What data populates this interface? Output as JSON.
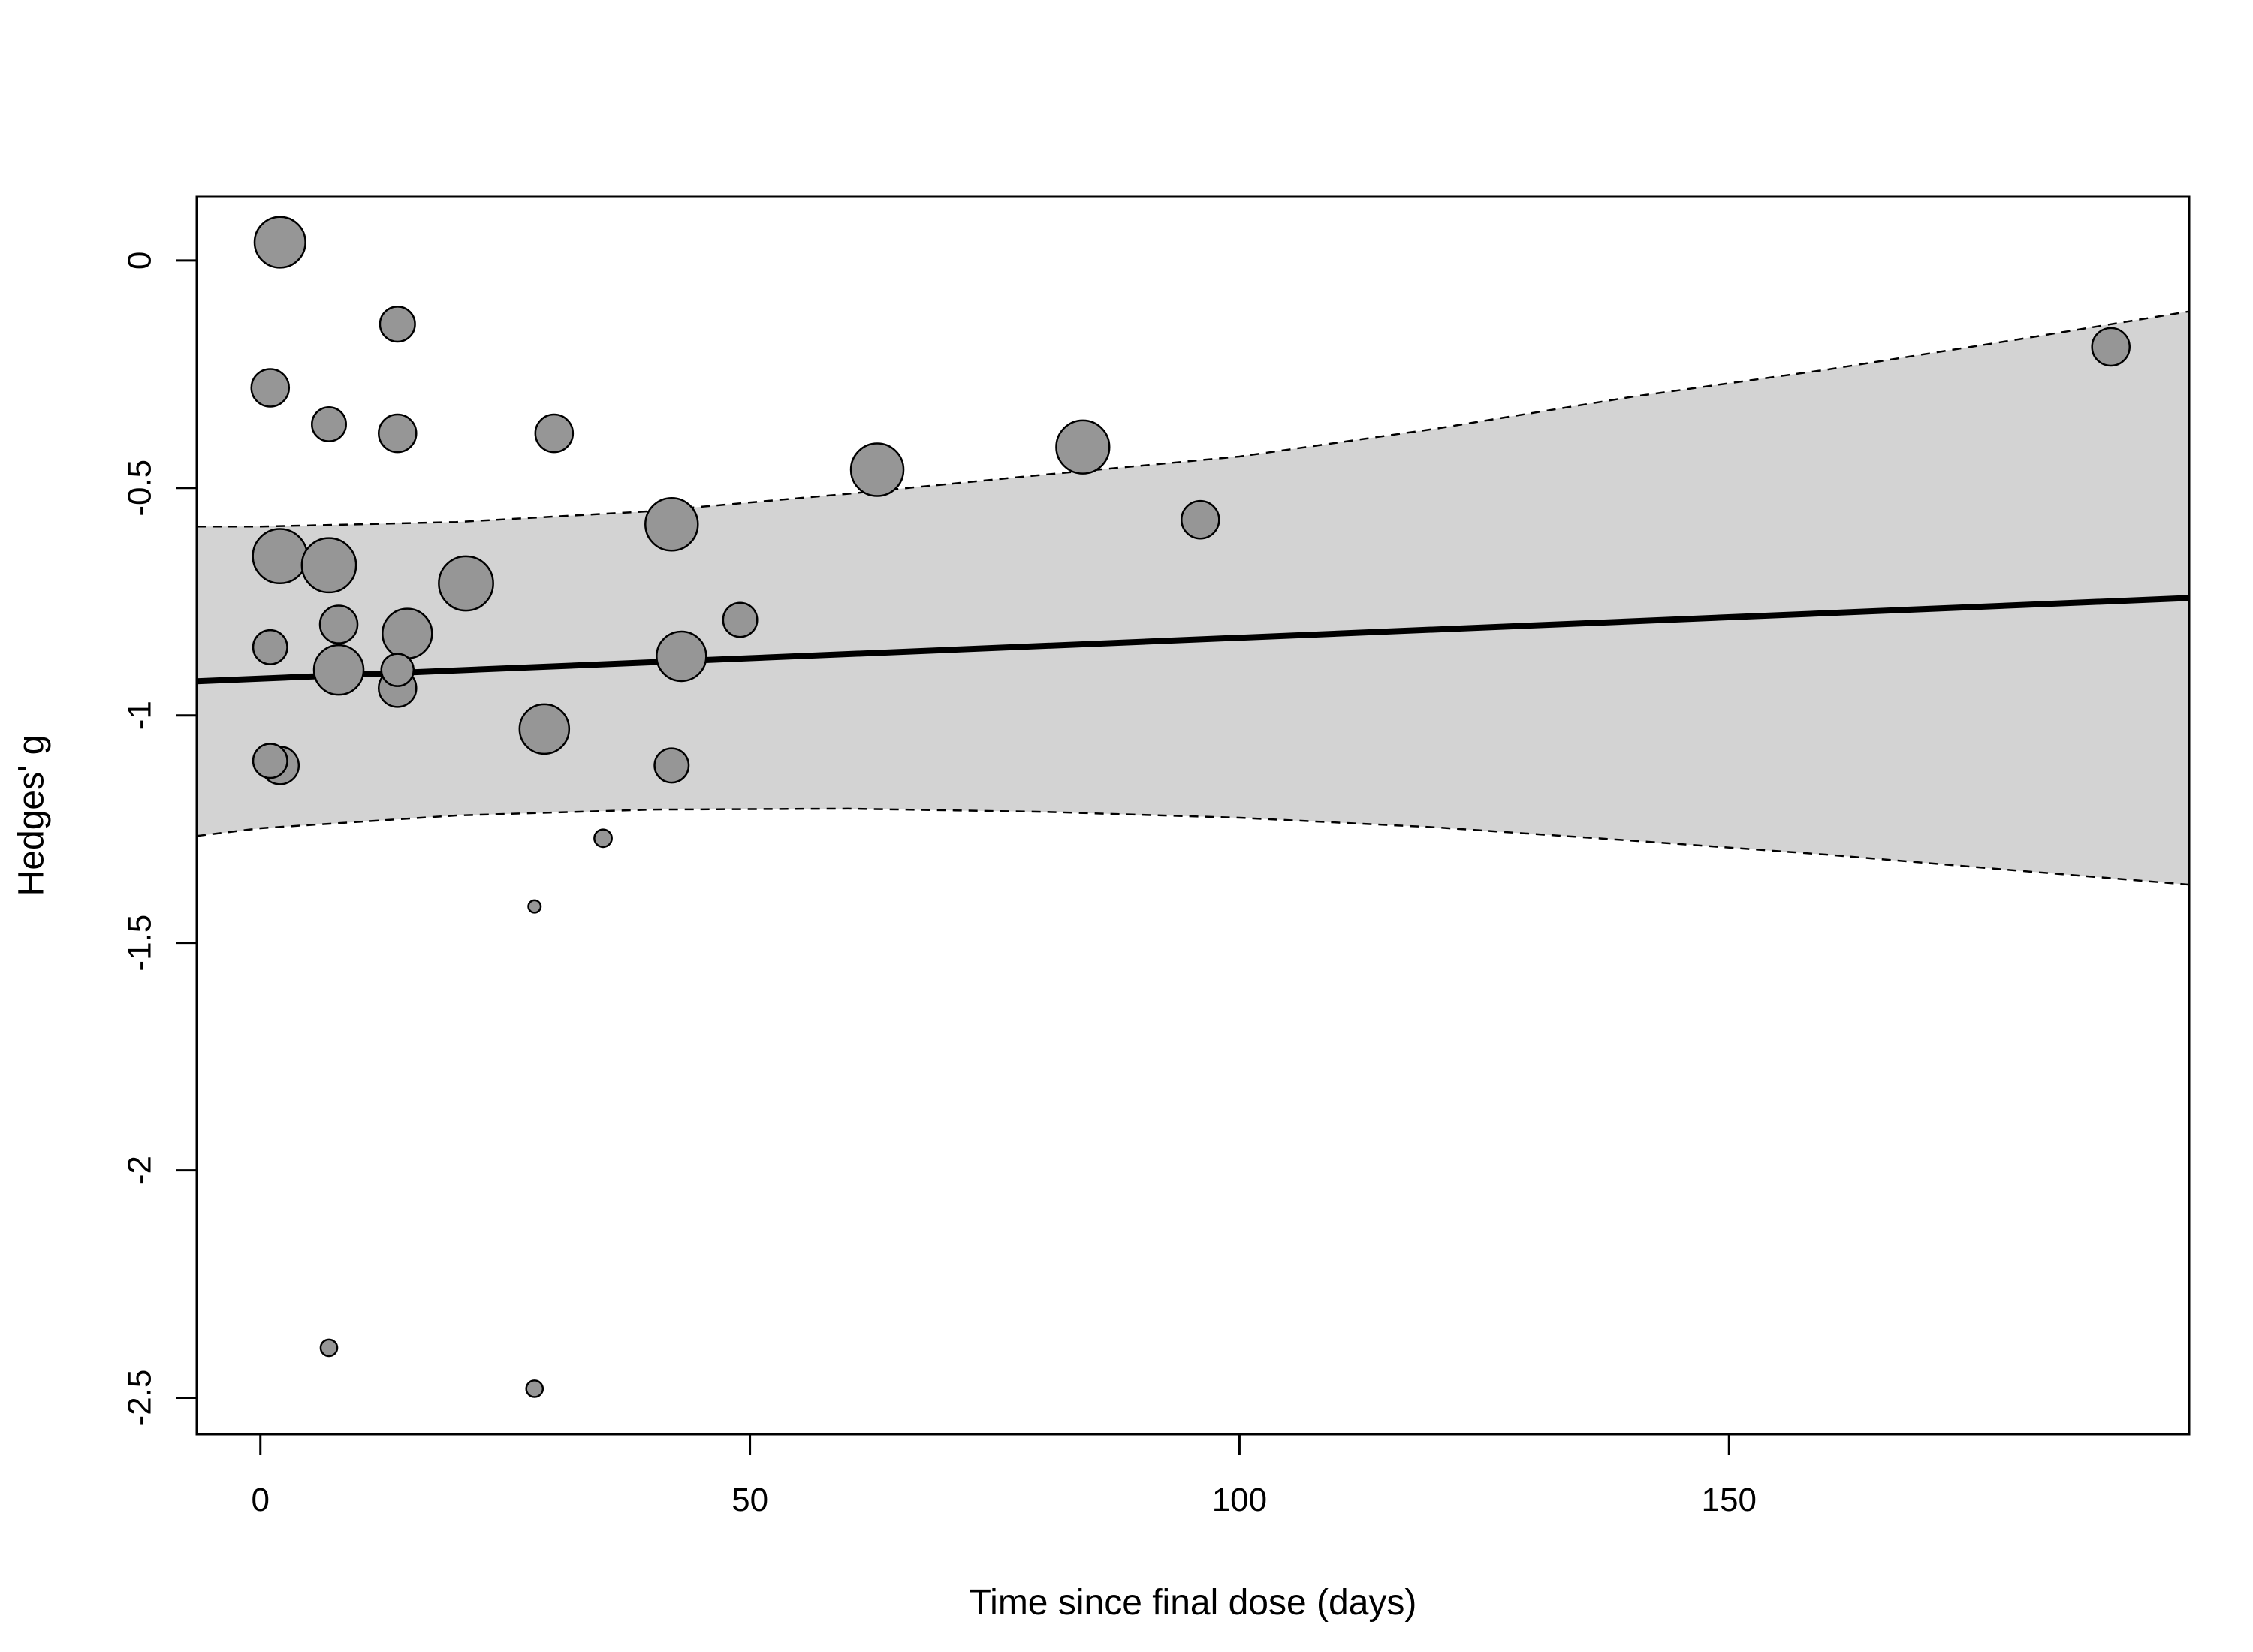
{
  "chart_data": {
    "type": "scatter",
    "title": "",
    "xlabel": "Time since final dose (days)",
    "ylabel": "Hedges' g",
    "xlim": [
      -6.5,
      197
    ],
    "ylim": [
      -2.58,
      0.14
    ],
    "x_ticks": [
      0,
      50,
      100,
      150
    ],
    "y_ticks": [
      0,
      -0.5,
      -1,
      -1.5,
      -2,
      -2.5
    ],
    "x_tick_labels": [
      "0",
      "50",
      "100",
      "150"
    ],
    "y_tick_labels": [
      "0",
      "-0.5",
      "-1",
      "-1.5",
      "-2",
      "-2.5"
    ],
    "grid": false,
    "legend": "none",
    "colors": {
      "points": "#969696",
      "point_outline": "#000000",
      "ci_band": "#d3d3d3",
      "regression_line": "#000000"
    },
    "regression": {
      "x": [
        -6.5,
        197
      ],
      "y": [
        -0.925,
        -0.742
      ]
    },
    "ci_upper": {
      "x": [
        -6.5,
        0,
        20,
        40,
        60,
        80,
        100,
        120,
        140,
        160,
        180,
        197
      ],
      "y": [
        -0.585,
        -0.585,
        -0.575,
        -0.551,
        -0.513,
        -0.471,
        -0.431,
        -0.37,
        -0.3,
        -0.24,
        -0.172,
        -0.112
      ]
    },
    "ci_lower": {
      "x": [
        -6.5,
        0,
        20,
        40,
        60,
        80,
        100,
        120,
        140,
        160,
        180,
        197
      ],
      "y": [
        -1.265,
        -1.248,
        -1.22,
        -1.207,
        -1.205,
        -1.212,
        -1.225,
        -1.246,
        -1.275,
        -1.306,
        -1.342,
        -1.372
      ]
    },
    "points": [
      {
        "x": 2,
        "y": 0.04,
        "w": 4.2
      },
      {
        "x": 14,
        "y": -0.14,
        "w": 2.0
      },
      {
        "x": 1,
        "y": -0.28,
        "w": 2.3
      },
      {
        "x": 7,
        "y": -0.36,
        "w": 1.9
      },
      {
        "x": 14,
        "y": -0.38,
        "w": 2.3
      },
      {
        "x": 30,
        "y": -0.38,
        "w": 2.3
      },
      {
        "x": 84,
        "y": -0.41,
        "w": 4.6
      },
      {
        "x": 63,
        "y": -0.46,
        "w": 4.5
      },
      {
        "x": 96,
        "y": -0.57,
        "w": 2.3
      },
      {
        "x": 42,
        "y": -0.58,
        "w": 4.5
      },
      {
        "x": 2,
        "y": -0.65,
        "w": 4.8
      },
      {
        "x": 7,
        "y": -0.67,
        "w": 4.8
      },
      {
        "x": 21,
        "y": -0.71,
        "w": 4.8
      },
      {
        "x": 49,
        "y": -0.79,
        "w": 1.9
      },
      {
        "x": 8,
        "y": -0.8,
        "w": 2.3
      },
      {
        "x": 15,
        "y": -0.82,
        "w": 4.0
      },
      {
        "x": 1,
        "y": -0.85,
        "w": 1.9
      },
      {
        "x": 43,
        "y": -0.87,
        "w": 4.0
      },
      {
        "x": 8,
        "y": -0.9,
        "w": 4.0
      },
      {
        "x": 14,
        "y": -0.9,
        "w": 1.7
      },
      {
        "x": 14,
        "y": -0.94,
        "w": 2.3
      },
      {
        "x": 29,
        "y": -1.03,
        "w": 4.0
      },
      {
        "x": 1,
        "y": -1.1,
        "w": 1.9
      },
      {
        "x": 2,
        "y": -1.11,
        "w": 2.3
      },
      {
        "x": 42,
        "y": -1.11,
        "w": 1.9
      },
      {
        "x": 35,
        "y": -1.27,
        "w": 0.5
      },
      {
        "x": 28,
        "y": -1.42,
        "w": 0.25
      },
      {
        "x": 7,
        "y": -2.39,
        "w": 0.45
      },
      {
        "x": 28,
        "y": -2.48,
        "w": 0.45
      },
      {
        "x": 189,
        "y": -0.19,
        "w": 2.3
      }
    ]
  }
}
